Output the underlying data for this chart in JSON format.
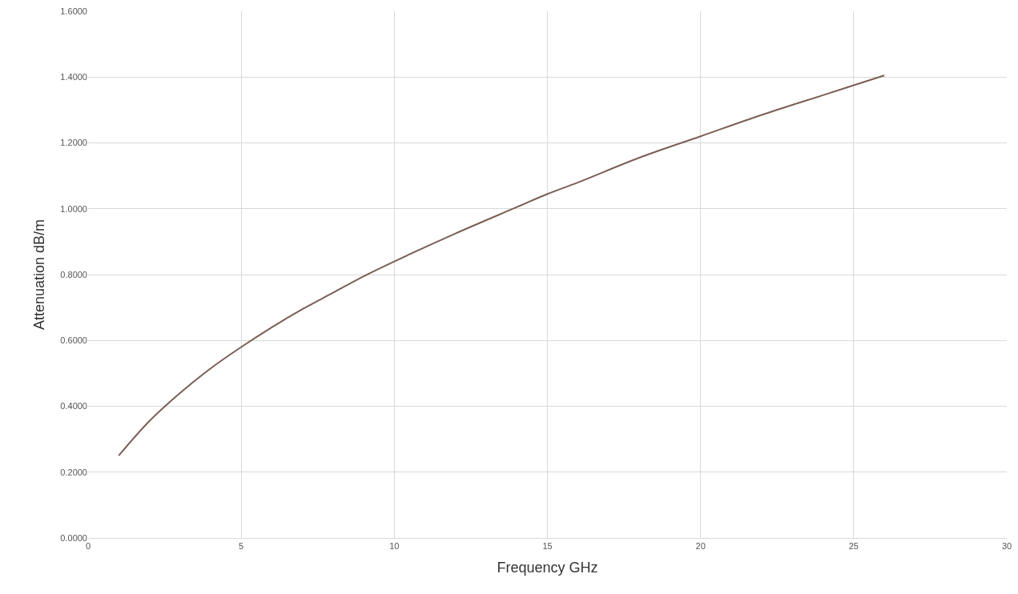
{
  "chart_data": {
    "type": "line",
    "xlabel": "Frequency GHz",
    "ylabel": "Attenuation dB/m",
    "x": [
      1,
      2,
      3,
      4,
      5,
      6,
      7,
      8,
      9,
      10,
      12,
      14,
      15,
      16,
      18,
      20,
      22,
      24,
      25,
      26
    ],
    "series": [
      {
        "color": "#7b5e55",
        "values": [
          0.25,
          0.355,
          0.44,
          0.515,
          0.58,
          0.64,
          0.695,
          0.745,
          0.795,
          0.84,
          0.925,
          1.005,
          1.045,
          1.08,
          1.155,
          1.22,
          1.285,
          1.345,
          1.375,
          1.405
        ]
      }
    ],
    "xlim": [
      0,
      30
    ],
    "xticks": [
      0,
      5,
      10,
      15,
      20,
      25,
      30
    ],
    "ylim": [
      0,
      1.6
    ],
    "yticks": [
      {
        "value": 0,
        "label": "0.0000"
      },
      {
        "value": 0.2,
        "label": "0.2000"
      },
      {
        "value": 0.4,
        "label": "0.4000"
      },
      {
        "value": 0.6,
        "label": "0.6000"
      },
      {
        "value": 0.8,
        "label": "0.8000"
      },
      {
        "value": 1.0,
        "label": "1.0000"
      },
      {
        "value": 1.2,
        "label": "1.2000"
      },
      {
        "value": 1.4,
        "label": "1.4000"
      },
      {
        "value": 1.6,
        "label": "1.6000"
      }
    ],
    "grid": true,
    "marker": "none",
    "line_style": "solid"
  }
}
